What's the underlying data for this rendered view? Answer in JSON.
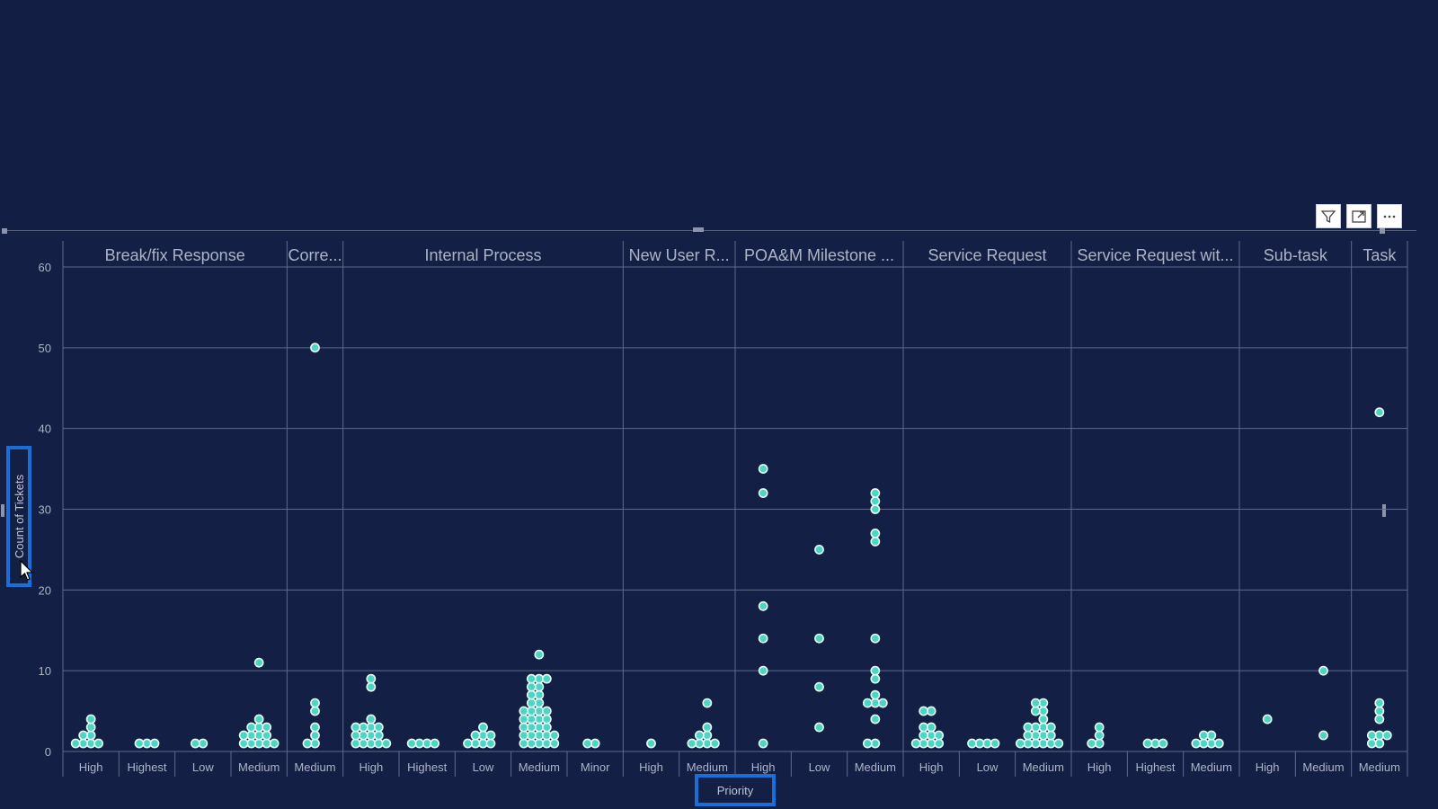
{
  "toolbar": {
    "filter_icon": "filter-icon",
    "focus_icon": "focus-mode-icon",
    "more_icon": "more-options-icon"
  },
  "colors": {
    "background": "#131f45",
    "gridline": "#5f6a8c",
    "dot_fill": "#4bd5c4",
    "dot_stroke": "#e9fbf8",
    "label": "#aeb4c6",
    "highlight": "#1a6fd6"
  },
  "chart_data": {
    "type": "scatter",
    "xlabel": "Priority",
    "ylabel": "Count of Tickets",
    "ylim": [
      0,
      60
    ],
    "yticks": [
      0,
      10,
      20,
      30,
      40,
      50,
      60
    ],
    "grid": true,
    "groups": [
      {
        "name": "Break/fix Response",
        "categories": [
          {
            "label": "High",
            "values": [
              1,
              1,
              1,
              1,
              2,
              2,
              3,
              4
            ]
          },
          {
            "label": "Highest",
            "values": [
              1,
              1,
              1
            ]
          },
          {
            "label": "Low",
            "values": [
              1,
              1
            ]
          },
          {
            "label": "Medium",
            "values": [
              1,
              1,
              1,
              1,
              1,
              2,
              2,
              2,
              2,
              3,
              3,
              3,
              4,
              11
            ]
          }
        ]
      },
      {
        "name": "Corre...",
        "categories": [
          {
            "label": "Medium",
            "values": [
              1,
              1,
              2,
              3,
              5,
              6,
              50
            ]
          }
        ]
      },
      {
        "name": "Internal Process",
        "categories": [
          {
            "label": "High",
            "values": [
              1,
              1,
              1,
              1,
              1,
              2,
              2,
              2,
              2,
              3,
              3,
              3,
              3,
              4,
              8,
              9
            ]
          },
          {
            "label": "Highest",
            "values": [
              1,
              1,
              1,
              1
            ]
          },
          {
            "label": "Low",
            "values": [
              1,
              1,
              1,
              1,
              2,
              2,
              2,
              3
            ]
          },
          {
            "label": "Medium",
            "values": [
              1,
              1,
              1,
              1,
              1,
              2,
              2,
              2,
              2,
              2,
              3,
              3,
              3,
              3,
              4,
              4,
              4,
              4,
              5,
              5,
              5,
              5,
              6,
              6,
              7,
              7,
              8,
              8,
              9,
              9,
              9,
              12
            ]
          },
          {
            "label": "Minor",
            "values": [
              1,
              1
            ]
          }
        ]
      },
      {
        "name": "New User R...",
        "categories": [
          {
            "label": "High",
            "values": [
              1
            ]
          },
          {
            "label": "Medium",
            "values": [
              1,
              1,
              1,
              1,
              2,
              2,
              3,
              6
            ]
          }
        ]
      },
      {
        "name": "POA&M Milestone ...",
        "categories": [
          {
            "label": "High",
            "values": [
              1,
              10,
              14,
              18,
              32,
              35
            ]
          },
          {
            "label": "Low",
            "values": [
              3,
              8,
              14,
              25
            ]
          },
          {
            "label": "Medium",
            "values": [
              1,
              1,
              4,
              6,
              6,
              6,
              7,
              9,
              10,
              14,
              26,
              27,
              30,
              31,
              32
            ]
          }
        ]
      },
      {
        "name": "Service Request",
        "categories": [
          {
            "label": "High",
            "values": [
              1,
              1,
              1,
              1,
              2,
              2,
              2,
              3,
              3,
              5,
              5
            ]
          },
          {
            "label": "Low",
            "values": [
              1,
              1,
              1,
              1
            ]
          },
          {
            "label": "Medium",
            "values": [
              1,
              1,
              1,
              1,
              1,
              1,
              2,
              2,
              2,
              2,
              3,
              3,
              3,
              3,
              4,
              5,
              5,
              6,
              6
            ]
          }
        ]
      },
      {
        "name": "Service Request wit...",
        "categories": [
          {
            "label": "High",
            "values": [
              1,
              1,
              2,
              3
            ]
          },
          {
            "label": "Highest",
            "values": [
              1,
              1,
              1
            ]
          },
          {
            "label": "Medium",
            "values": [
              1,
              1,
              1,
              1,
              2,
              2
            ]
          }
        ]
      },
      {
        "name": "Sub-task",
        "categories": [
          {
            "label": "High",
            "values": [
              4
            ]
          },
          {
            "label": "Medium",
            "values": [
              2,
              10
            ]
          }
        ]
      },
      {
        "name": "Task",
        "categories": [
          {
            "label": "Medium",
            "values": [
              1,
              1,
              2,
              2,
              2,
              4,
              5,
              6,
              42
            ]
          }
        ]
      }
    ]
  }
}
